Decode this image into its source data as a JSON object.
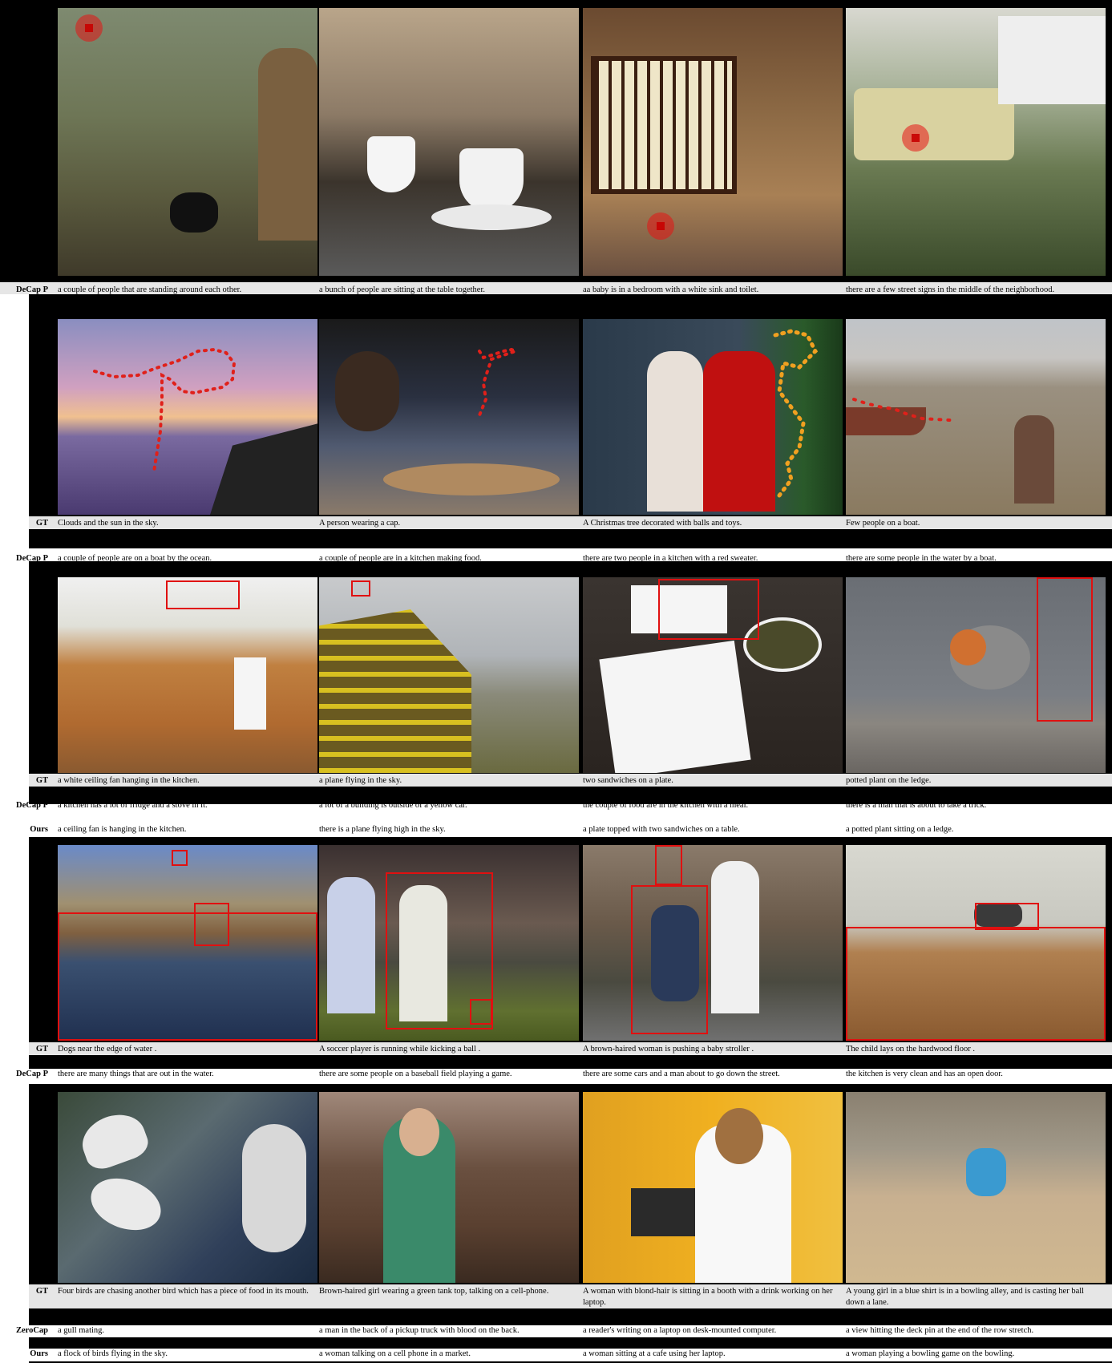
{
  "rows": [
    {
      "captions": [
        {
          "label": "DeCap P",
          "texts": [
            "a couple of people that are standing around each other.",
            "a bunch of people are sitting at the table together.",
            "aa baby is in a bedroom with a white sink and toilet.",
            "there are a few street signs in the middle of the neighborhood."
          ]
        }
      ]
    },
    {
      "captions": [
        {
          "label": "GT",
          "texts": [
            "Clouds and the sun in the sky.",
            "A person wearing a cap.",
            "A Christmas tree decorated with balls and toys.",
            "Few people on a boat."
          ]
        },
        {
          "label": "DeCap P",
          "texts": [
            "a couple of people are on a boat by the ocean.",
            "a couple of people are in a kitchen making food.",
            "there are two people in a kitchen with a red sweater.",
            "there are some people in the water by a boat."
          ]
        }
      ]
    },
    {
      "captions": [
        {
          "label": "GT",
          "texts": [
            "a white ceiling fan hanging in the kitchen.",
            "a plane flying in the sky.",
            "two sandwiches on a plate.",
            "potted plant on the ledge."
          ]
        },
        {
          "label": "DeCap P",
          "texts": [
            "a kitchen has a lot of fridge and a stove in it.",
            "a lot of a building is outside of a yellow car.",
            "the couple of food are in the kitchen with a meal.",
            "there is a man that is about to take a trick."
          ]
        },
        {
          "label": "Ours",
          "texts": [
            "a ceiling fan is hanging in the kitchen.",
            "there is a plane flying high in the sky.",
            "a plate topped with two sandwiches on a table.",
            "a potted plant sitting on a ledge."
          ]
        }
      ]
    },
    {
      "captions": [
        {
          "label": "GT",
          "texts": [
            "Dogs near the edge of water .",
            "A soccer player is running while kicking a ball .",
            "A brown-haired woman is pushing a baby stroller .",
            "The child lays on the hardwood floor ."
          ]
        },
        {
          "label": "DeCap P",
          "texts": [
            "there are many things that are out in the water.",
            "there are some people on a baseball field playing a game.",
            "there are some cars and a man about to go down the street.",
            "the kitchen is very clean and has an open door."
          ]
        }
      ]
    },
    {
      "captions": [
        {
          "label": "GT",
          "texts": [
            "Four birds are chasing another bird which has a piece of food in its mouth.",
            "Brown-haired girl wearing a green tank top, talking on a cell-phone.",
            "A woman with blond-hair is sitting in a booth with a drink working on her laptop.",
            "A young girl in a blue shirt is in a bowling alley, and is casting her ball down a lane."
          ]
        },
        {
          "label": "ZeroCap",
          "texts": [
            "a gull mating.",
            "a man in the back of a pickup truck with blood on the back.",
            "a reader's writing on a laptop on desk-mounted computer.",
            "a view hitting the deck pin at the end of the row stretch."
          ]
        },
        {
          "label": "Ours",
          "texts": [
            "a flock of birds flying in the sky.",
            "a woman talking on a cell phone in a market.",
            "a woman sitting at a cafe using her laptop.",
            "a woman playing a bowling game on the bowling."
          ]
        }
      ]
    }
  ],
  "colors": {
    "bbox": "#e01010",
    "trace_red": "#e0201a",
    "trace_orange": "#f0a020"
  }
}
